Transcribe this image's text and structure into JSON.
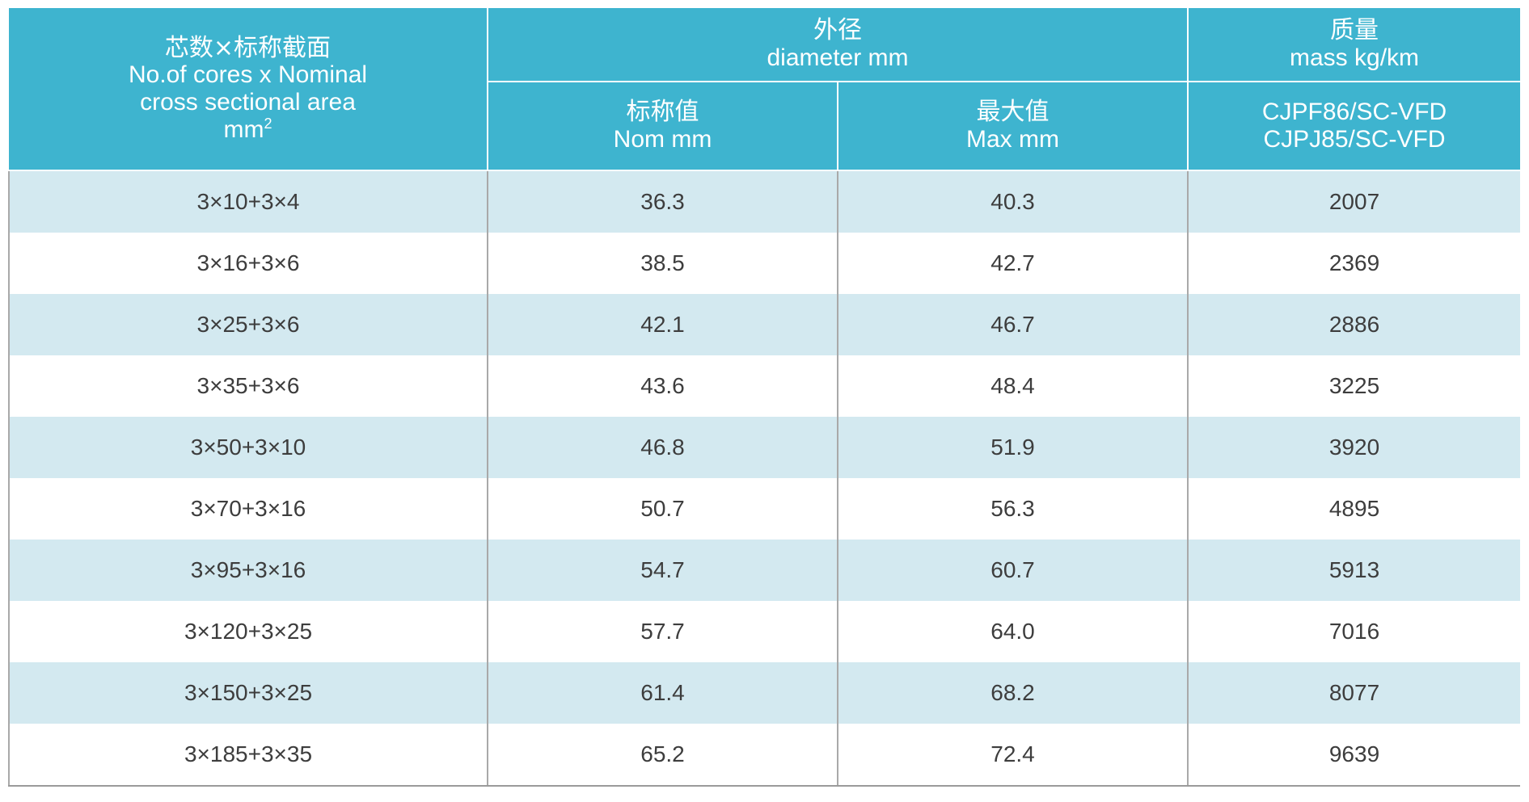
{
  "colors": {
    "header_bg": "#3eb4cf",
    "header_text": "#ffffff",
    "stripe_row": "#d3e9f0",
    "plain_row": "#ffffff",
    "cell_text": "#3d3d3d"
  },
  "table": {
    "header": {
      "col1": {
        "line1": "芯数×标称截面",
        "line2": "No.of cores x Nominal",
        "line3": "cross sectional area",
        "unit": "mm",
        "unit_sup": "2"
      },
      "diameter": {
        "line1": "外径",
        "line2": "diameter  mm"
      },
      "mass": {
        "line1": "质量",
        "line2": "mass kg/km"
      },
      "nom": {
        "line1": "标称值",
        "line2": "Nom mm"
      },
      "max": {
        "line1": "最大值",
        "line2": "Max mm"
      },
      "models": {
        "line1": "CJPF86/SC-VFD",
        "line2": "CJPJ85/SC-VFD"
      }
    },
    "rows": [
      {
        "size": "3×10+3×4",
        "nom": "36.3",
        "max": "40.3",
        "mass": "2007"
      },
      {
        "size": "3×16+3×6",
        "nom": "38.5",
        "max": "42.7",
        "mass": "2369"
      },
      {
        "size": "3×25+3×6",
        "nom": "42.1",
        "max": "46.7",
        "mass": "2886"
      },
      {
        "size": "3×35+3×6",
        "nom": "43.6",
        "max": "48.4",
        "mass": "3225"
      },
      {
        "size": "3×50+3×10",
        "nom": "46.8",
        "max": "51.9",
        "mass": "3920"
      },
      {
        "size": "3×70+3×16",
        "nom": "50.7",
        "max": "56.3",
        "mass": "4895"
      },
      {
        "size": "3×95+3×16",
        "nom": "54.7",
        "max": "60.7",
        "mass": "5913"
      },
      {
        "size": "3×120+3×25",
        "nom": "57.7",
        "max": "64.0",
        "mass": "7016"
      },
      {
        "size": "3×150+3×25",
        "nom": "61.4",
        "max": "68.2",
        "mass": "8077"
      },
      {
        "size": "3×185+3×35",
        "nom": "65.2",
        "max": "72.4",
        "mass": "9639"
      }
    ]
  }
}
